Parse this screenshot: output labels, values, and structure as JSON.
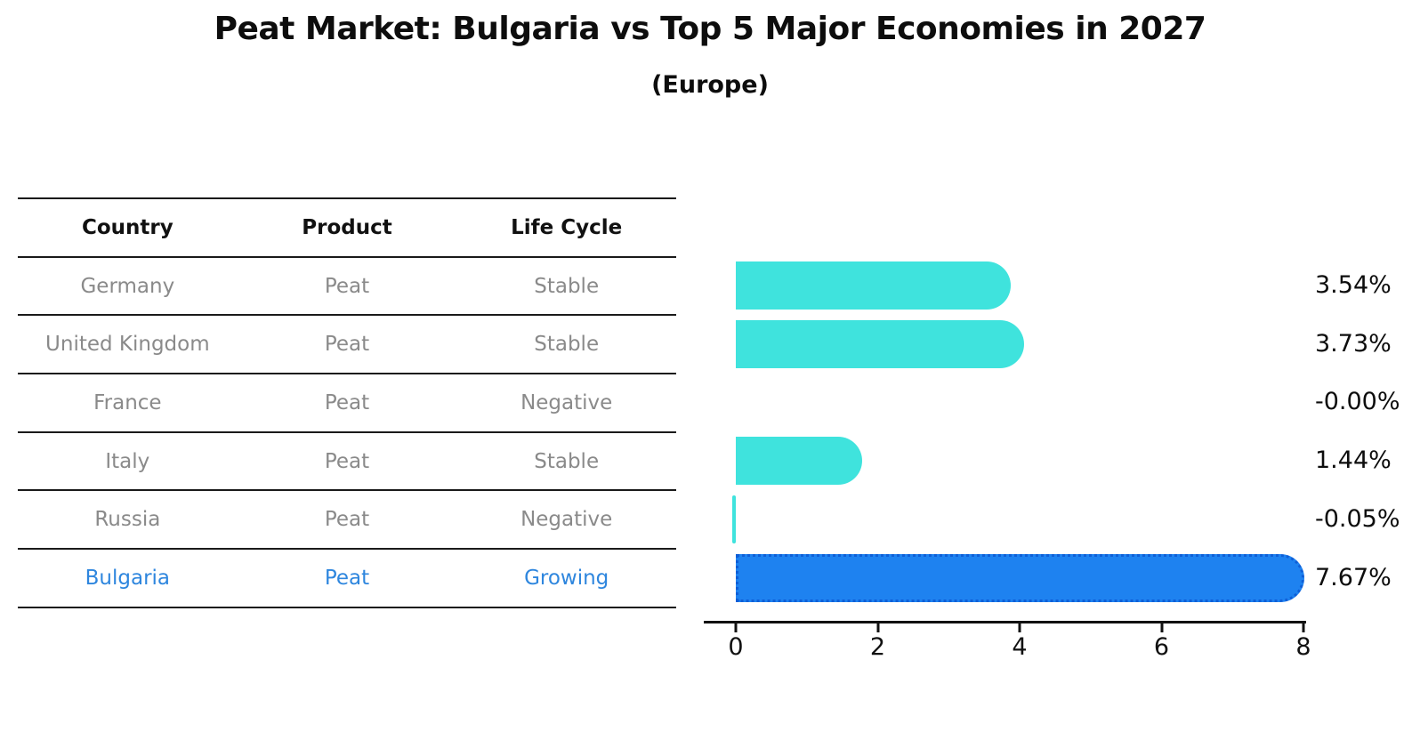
{
  "title": "Peat Market: Bulgaria vs Top 5 Major Economies in 2027",
  "subtitle": "(Europe)",
  "table": {
    "headers": [
      "Country",
      "Product",
      "Life Cycle"
    ],
    "rows": [
      {
        "country": "Germany",
        "product": "Peat",
        "life_cycle": "Stable"
      },
      {
        "country": "United Kingdom",
        "product": "Peat",
        "life_cycle": "Stable"
      },
      {
        "country": "France",
        "product": "Peat",
        "life_cycle": "Negative"
      },
      {
        "country": "Italy",
        "product": "Peat",
        "life_cycle": "Stable"
      },
      {
        "country": "Russia",
        "product": "Peat",
        "life_cycle": "Negative"
      },
      {
        "country": "Bulgaria",
        "product": "Peat",
        "life_cycle": "Growing"
      }
    ],
    "highlight_row_index": 5,
    "text_color": "#8a8a8a",
    "header_text_color": "#111111",
    "highlight_text_color": "#2E86DE"
  },
  "chart_data": {
    "type": "bar",
    "orientation": "horizontal",
    "title": "Peat Market: Bulgaria vs Top 5 Major Economies in 2027",
    "subtitle": "(Europe)",
    "categories": [
      "Germany",
      "United Kingdom",
      "France",
      "Italy",
      "Russia",
      "Bulgaria"
    ],
    "values": [
      3.54,
      3.73,
      -0.0,
      1.44,
      -0.05,
      7.67
    ],
    "value_labels": [
      "3.54%",
      "3.73%",
      "-0.00%",
      "1.44%",
      "-0.05%",
      "7.67%"
    ],
    "unit": "%",
    "x_ticks": [
      "0",
      "2",
      "4",
      "6",
      "8"
    ],
    "x_tick_values": [
      0,
      2,
      4,
      6,
      8
    ],
    "xlim": [
      -0.45,
      8
    ],
    "bar_color": "#3FE3DD",
    "highlight_color": "#1E82F0",
    "highlight_edge_color": "#0f5fd7",
    "highlight_index": 5,
    "axis_color": "#111111",
    "grid": false,
    "legend": false
  }
}
